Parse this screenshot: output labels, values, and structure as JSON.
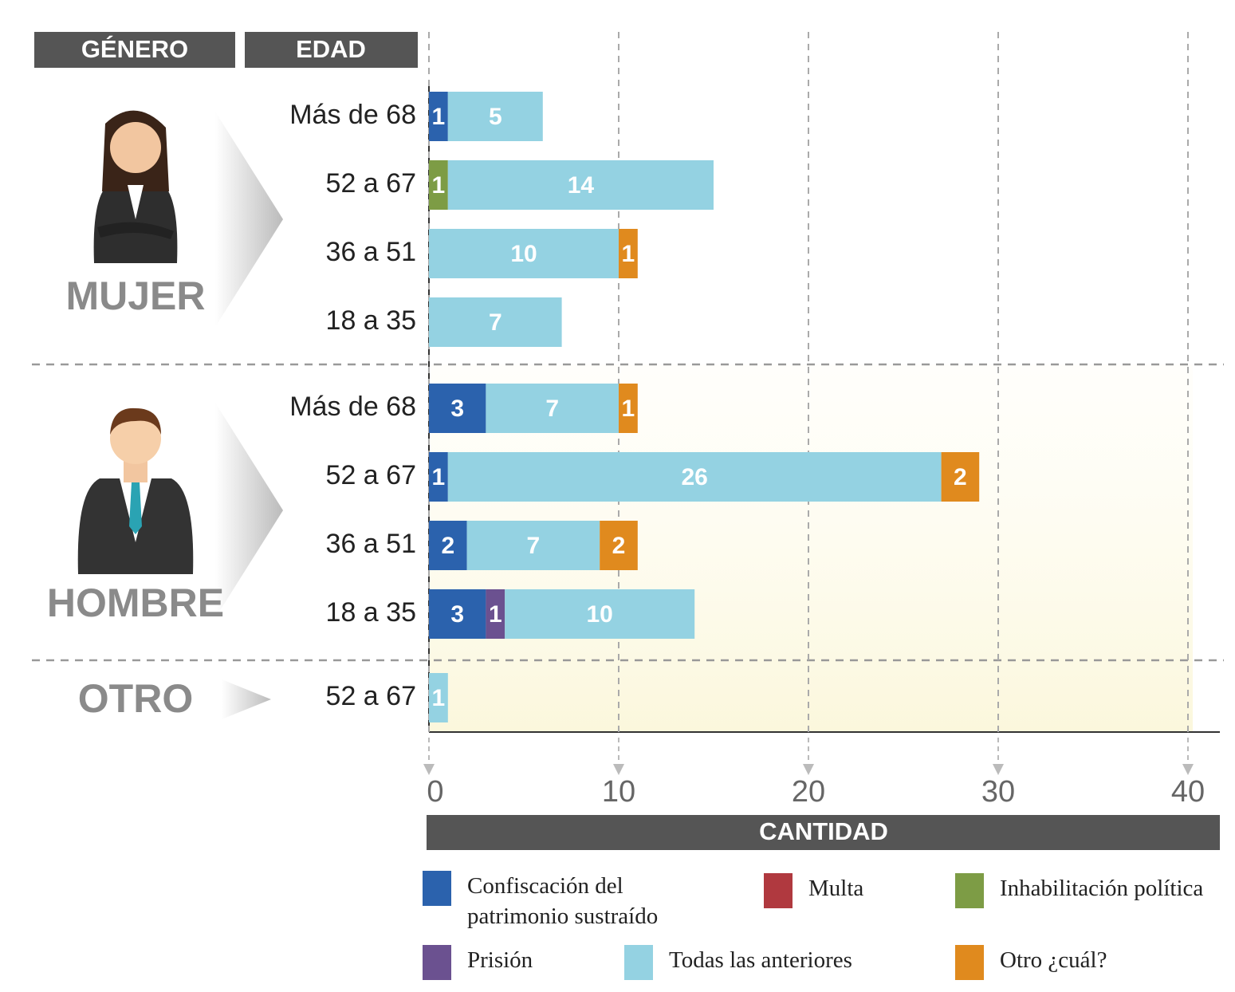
{
  "chart_data": {
    "type": "stacked-bar-horizontal",
    "headers": [
      "GÉNERO",
      "EDAD"
    ],
    "groups": [
      {
        "name": "MUJER",
        "categories": [
          "Más de 68",
          "52 a 67",
          "36 a 51",
          "18 a 35"
        ]
      },
      {
        "name": "HOMBRE",
        "categories": [
          "Más de 68",
          "52 a 67",
          "36 a 51",
          "18 a 35"
        ]
      },
      {
        "name": "OTRO",
        "categories": [
          "52 a 67"
        ]
      }
    ],
    "series": [
      {
        "name": "Confiscación del patrimonio sustraído",
        "color": "#2b62ad",
        "values": [
          1,
          null,
          null,
          null,
          3,
          1,
          2,
          3,
          null
        ]
      },
      {
        "name": "Multa",
        "color": "#b0393f",
        "values": [
          null,
          null,
          null,
          null,
          null,
          null,
          null,
          null,
          null
        ]
      },
      {
        "name": "Inhabilitación política",
        "color": "#7d9c45",
        "values": [
          null,
          1,
          null,
          null,
          null,
          null,
          null,
          null,
          null
        ]
      },
      {
        "name": "Prisión",
        "color": "#6b5190",
        "values": [
          null,
          null,
          null,
          null,
          null,
          null,
          null,
          1,
          null
        ]
      },
      {
        "name": "Todas las anteriores",
        "color": "#94d2e2",
        "values": [
          5,
          14,
          10,
          7,
          7,
          26,
          7,
          10,
          1
        ]
      },
      {
        "name": "Otro ¿cuál?",
        "color": "#e08a1e",
        "values": [
          null,
          null,
          1,
          null,
          1,
          2,
          2,
          null,
          null
        ]
      }
    ],
    "x_label": "CANTIDAD",
    "xlim": [
      0,
      40
    ],
    "xticks": [
      0,
      10,
      20,
      30,
      40
    ],
    "grid": true
  }
}
